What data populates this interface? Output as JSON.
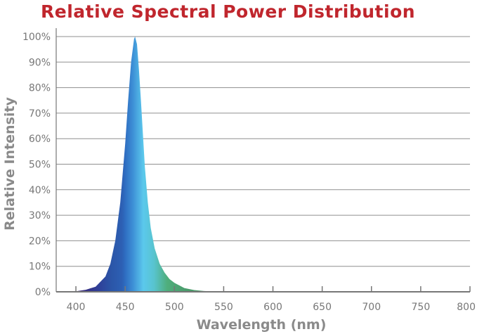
{
  "chart_data": {
    "type": "area",
    "title": "Relative Spectral Power Distribution",
    "xlabel": "Wavelength (nm)",
    "ylabel": "Relative Intensity",
    "xlim": [
      380,
      800
    ],
    "ylim": [
      0,
      100
    ],
    "x_ticks": [
      400,
      450,
      500,
      550,
      600,
      650,
      700,
      750,
      800
    ],
    "y_ticks": [
      0,
      10,
      20,
      30,
      40,
      50,
      60,
      70,
      80,
      90,
      100
    ],
    "y_tick_labels": [
      "0%",
      "10%",
      "20%",
      "30%",
      "40%",
      "50%",
      "60%",
      "70%",
      "80%",
      "90%",
      "100%"
    ],
    "grid": "horizontal",
    "series": [
      {
        "x": [
          380,
          400,
          410,
          420,
          430,
          435,
          440,
          445,
          450,
          453,
          456,
          459,
          460,
          462,
          464,
          466,
          468,
          470,
          473,
          476,
          480,
          485,
          490,
          495,
          500,
          505,
          510,
          520,
          530,
          550,
          600,
          650,
          700,
          750,
          800
        ],
        "values": [
          0,
          0.2,
          0.8,
          2,
          6,
          11,
          20,
          35,
          58,
          75,
          90,
          99,
          100,
          97,
          87,
          75,
          62,
          49,
          35,
          25,
          17,
          11,
          7.5,
          5,
          3.5,
          2.5,
          1.5,
          0.7,
          0.3,
          0,
          0,
          0,
          0,
          0,
          0
        ]
      }
    ],
    "colors": {
      "title": "#c0262d",
      "gridline": "#8f8f8f",
      "axis": "#777777",
      "fill_violet": "#3a2a7a",
      "fill_blue": "#2b56a8",
      "fill_cyan": "#5bc8ec",
      "fill_green": "#4fae7c"
    }
  }
}
